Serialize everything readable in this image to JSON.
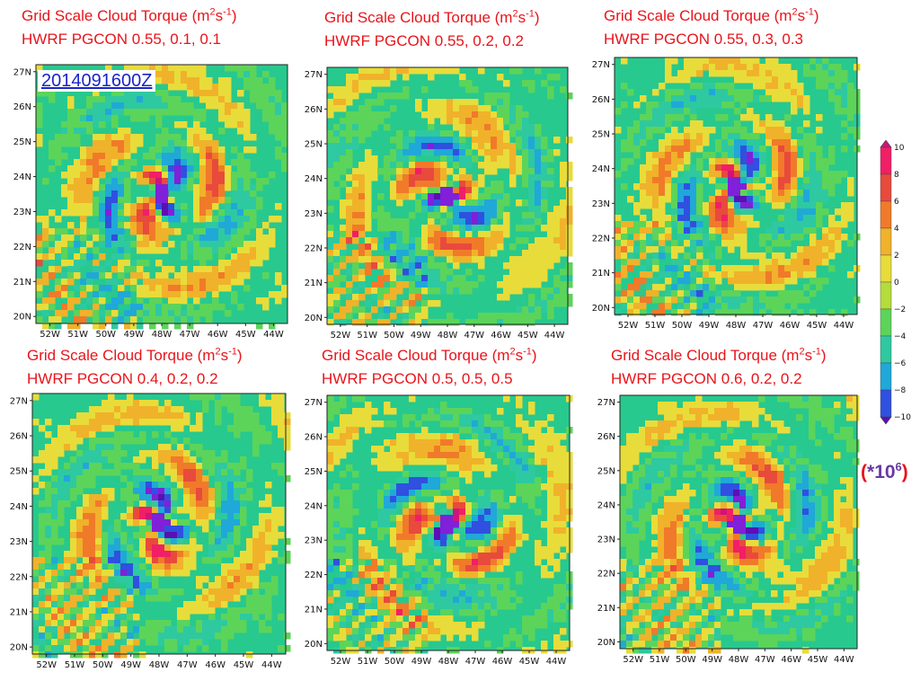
{
  "title_prefix": "Grid Scale Cloud Torque (m",
  "title_exp1": "2",
  "title_mid": "s",
  "title_exp2": "-1",
  "title_suffix": ")",
  "timestamp": "2014091600Z",
  "panels": [
    {
      "config": "HWRF PGCON  0.55, 0.1, 0.1"
    },
    {
      "config": "HWRF PGCON  0.55, 0.2, 0.2"
    },
    {
      "config": "HWRF PGCON  0.55, 0.3, 0.3"
    },
    {
      "config": "HWRF PGCON  0.4, 0.2, 0.2"
    },
    {
      "config": "HWRF PGCON  0.5, 0.5, 0.5"
    },
    {
      "config": "HWRF PGCON  0.6, 0.2, 0.2"
    }
  ],
  "scale_note": {
    "open": "(",
    "star": "*",
    "base": "10",
    "exp": "6",
    "close": ")"
  },
  "chart_data": {
    "type": "heatmap",
    "panel_count": 6,
    "x_ticks": [
      "52W",
      "51W",
      "50W",
      "49W",
      "48W",
      "47W",
      "46W",
      "45W",
      "44W"
    ],
    "y_ticks": [
      "27N",
      "26N",
      "25N",
      "24N",
      "23N",
      "22N",
      "21N",
      "20N"
    ],
    "xlim": [
      -52.5,
      -43.5
    ],
    "ylim": [
      19.8,
      27.2
    ],
    "colorbar": {
      "levels": [
        10,
        8,
        6,
        4,
        2,
        0,
        -2,
        -4,
        -6,
        -8,
        -10
      ],
      "colors": [
        "#d0147a",
        "#f01f66",
        "#e84a3c",
        "#f07a2a",
        "#f0b22a",
        "#e8dc3a",
        "#b4dc3a",
        "#5cd45a",
        "#2ec9a0",
        "#20a8d8",
        "#3050e0",
        "#8020d8",
        "#5a10b4"
      ],
      "unit": "*10^6"
    },
    "storm_center": {
      "lon": -48.0,
      "lat": 23.5
    }
  }
}
